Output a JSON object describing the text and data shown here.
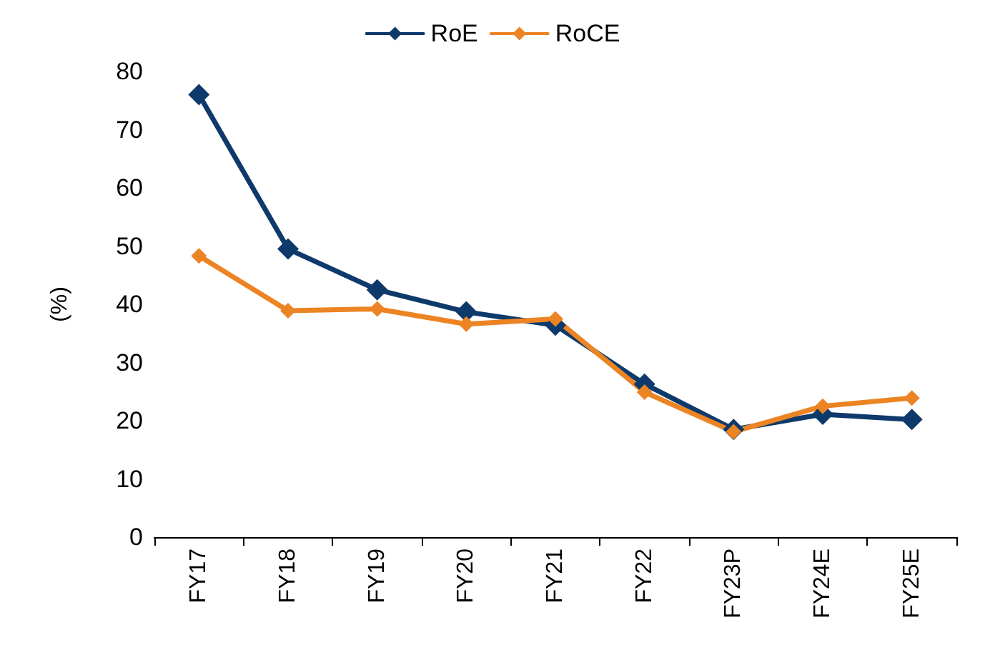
{
  "chart_data": {
    "type": "line",
    "ylabel": "(%)",
    "categories": [
      "FY17",
      "FY18",
      "FY19",
      "FY20",
      "FY21",
      "FY22",
      "FY23P",
      "FY24E",
      "FY25E"
    ],
    "series": [
      {
        "name": "RoE",
        "color": "#0e3a6b",
        "values": [
          76.0,
          49.5,
          42.5,
          38.7,
          36.4,
          26.3,
          18.5,
          21.1,
          20.2
        ]
      },
      {
        "name": "RoCE",
        "color": "#ec8424",
        "values": [
          48.3,
          38.9,
          39.2,
          36.6,
          37.5,
          24.9,
          18.1,
          22.5,
          23.9
        ]
      }
    ],
    "ylim": [
      0,
      80
    ],
    "yticks": [
      0,
      10,
      20,
      30,
      40,
      50,
      60,
      70,
      80
    ],
    "grid": false,
    "legend": "top",
    "marker": "diamond",
    "line_style": "solid"
  }
}
